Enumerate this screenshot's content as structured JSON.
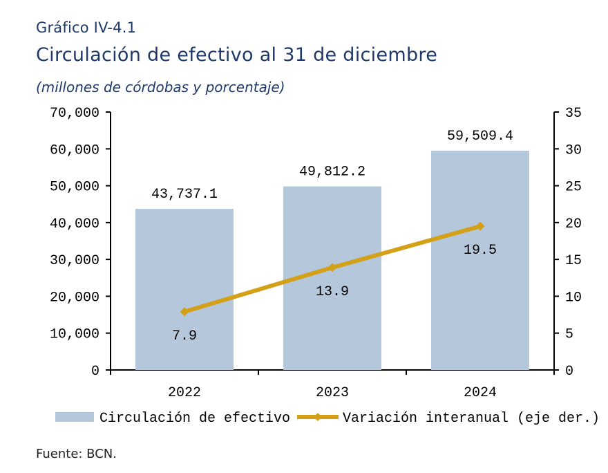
{
  "header": {
    "label": "Gráfico IV-4.1",
    "title": "Circulación de efectivo al 31 de diciembre",
    "subtitle": "(millones de córdobas y porcentaje)"
  },
  "footer": {
    "source": "Fuente: BCN."
  },
  "chart_data": {
    "type": "bar",
    "categories": [
      "2022",
      "2023",
      "2024"
    ],
    "series": [
      {
        "name": "Circulación de efectivo",
        "type": "bar",
        "axis": "left",
        "values": [
          43737.1,
          49812.2,
          59509.4
        ],
        "labels": [
          "43,737.1",
          "49,812.2",
          "59,509.4"
        ],
        "color": "#b4c7db"
      },
      {
        "name": "Variación interanual (eje der.)",
        "type": "line",
        "axis": "right",
        "values": [
          7.9,
          13.9,
          19.5
        ],
        "labels": [
          "7.9",
          "13.9",
          "19.5"
        ],
        "color": "#d4a017"
      }
    ],
    "y_left": {
      "range": [
        0,
        70000
      ],
      "ticks": [
        0,
        10000,
        20000,
        30000,
        40000,
        50000,
        60000,
        70000
      ],
      "tick_labels": [
        "0",
        "10,000",
        "20,000",
        "30,000",
        "40,000",
        "50,000",
        "60,000",
        "70,000"
      ]
    },
    "y_right": {
      "range": [
        0,
        35
      ],
      "ticks": [
        0,
        5,
        10,
        15,
        20,
        25,
        30,
        35
      ],
      "tick_labels": [
        "0",
        "5",
        "10",
        "15",
        "20",
        "25",
        "30",
        "35"
      ]
    },
    "grid": false,
    "legend_position": "bottom"
  }
}
